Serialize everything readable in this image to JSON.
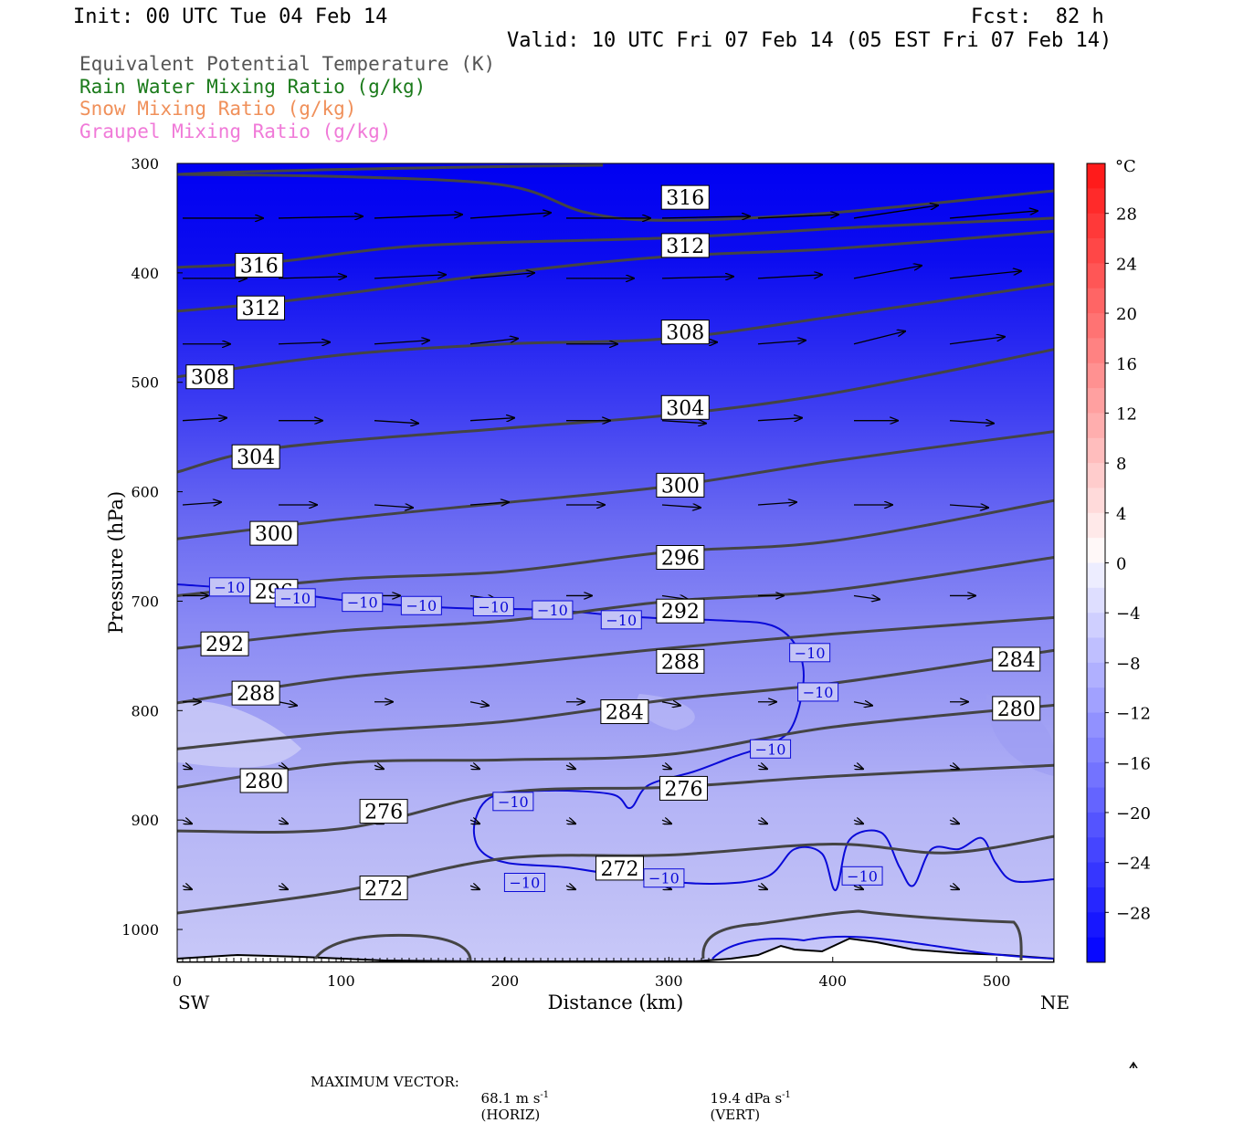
{
  "header": {
    "init": "Init: 00 UTC Tue 04 Feb 14",
    "fcst": "Fcst:  82 h",
    "valid": "Valid: 10 UTC Fri 07 Feb 14 (05 EST Fri 07 Feb 14)"
  },
  "legend": [
    {
      "label": "Equivalent Potential Temperature (K)",
      "color": "#555555"
    },
    {
      "label": "Rain Water Mixing Ratio (g/kg)",
      "color": "#1a7a1a"
    },
    {
      "label": "Snow Mixing Ratio (g/kg)",
      "color": "#f0905a"
    },
    {
      "label": "Graupel Mixing Ratio (g/kg)",
      "color": "#f07ad8"
    }
  ],
  "chart_data": {
    "type": "cross-section",
    "xlabel": "Distance (km)",
    "ylabel": "Pressure (hPa)",
    "xlim": [
      0,
      535
    ],
    "ylim": [
      1030,
      300
    ],
    "y_scale": "linear",
    "x_ticks": [
      0,
      100,
      200,
      300,
      400,
      500
    ],
    "y_ticks": [
      300,
      400,
      500,
      600,
      700,
      800,
      900,
      1000
    ],
    "x_end_labels": {
      "left": "SW",
      "right": "NE"
    },
    "colorbar": {
      "unit": "°C",
      "levels": [
        -32,
        -30,
        -28,
        -26,
        -24,
        -22,
        -20,
        -18,
        -16,
        -14,
        -12,
        -10,
        -8,
        -6,
        -4,
        -2,
        0,
        2,
        4,
        6,
        8,
        10,
        12,
        14,
        16,
        18,
        20,
        22,
        24,
        26,
        28,
        30,
        32
      ],
      "labels": [
        "28",
        "24",
        "20",
        "16",
        "12",
        "8",
        "4",
        "0",
        "-4",
        "-8",
        "-12",
        "-16",
        "-20",
        "-24",
        "-28"
      ]
    },
    "theta_e_contours": [
      {
        "value": 316,
        "points": [
          [
            0,
            310
          ],
          [
            100,
            312
          ],
          [
            200,
            320
          ],
          [
            250,
            345
          ],
          [
            300,
            352
          ],
          [
            400,
            345
          ],
          [
            535,
            325
          ]
        ]
      },
      {
        "value": 316,
        "points": [
          [
            0,
            395
          ],
          [
            60,
            390
          ],
          [
            150,
            375
          ],
          [
            300,
            368
          ],
          [
            420,
            358
          ],
          [
            535,
            350
          ]
        ]
      },
      {
        "value": 312,
        "points": [
          [
            0,
            435
          ],
          [
            70,
            425
          ],
          [
            200,
            400
          ],
          [
            300,
            385
          ],
          [
            400,
            378
          ],
          [
            535,
            362
          ]
        ]
      },
      {
        "value": 308,
        "points": [
          [
            0,
            495
          ],
          [
            100,
            475
          ],
          [
            200,
            465
          ],
          [
            300,
            460
          ],
          [
            400,
            440
          ],
          [
            535,
            410
          ]
        ]
      },
      {
        "value": 304,
        "points": [
          [
            0,
            582
          ],
          [
            60,
            560
          ],
          [
            200,
            542
          ],
          [
            300,
            530
          ],
          [
            400,
            510
          ],
          [
            535,
            470
          ]
        ]
      },
      {
        "value": 300,
        "points": [
          [
            0,
            643
          ],
          [
            100,
            625
          ],
          [
            200,
            610
          ],
          [
            300,
            595
          ],
          [
            400,
            572
          ],
          [
            535,
            545
          ]
        ]
      },
      {
        "value": 296,
        "points": [
          [
            0,
            695
          ],
          [
            100,
            680
          ],
          [
            200,
            673
          ],
          [
            300,
            655
          ],
          [
            400,
            645
          ],
          [
            535,
            608
          ]
        ]
      },
      {
        "value": 292,
        "points": [
          [
            0,
            743
          ],
          [
            100,
            727
          ],
          [
            200,
            718
          ],
          [
            300,
            700
          ],
          [
            400,
            690
          ],
          [
            535,
            660
          ]
        ]
      },
      {
        "value": 288,
        "points": [
          [
            0,
            793
          ],
          [
            100,
            770
          ],
          [
            200,
            758
          ],
          [
            300,
            743
          ],
          [
            400,
            730
          ],
          [
            535,
            715
          ]
        ]
      },
      {
        "value": 284,
        "points": [
          [
            0,
            835
          ],
          [
            100,
            820
          ],
          [
            200,
            810
          ],
          [
            300,
            790
          ],
          [
            400,
            775
          ],
          [
            535,
            745
          ]
        ]
      },
      {
        "value": 280,
        "points": [
          [
            0,
            870
          ],
          [
            100,
            848
          ],
          [
            200,
            845
          ],
          [
            300,
            840
          ],
          [
            400,
            815
          ],
          [
            535,
            795
          ]
        ]
      },
      {
        "value": 276,
        "points": [
          [
            0,
            910
          ],
          [
            100,
            908
          ],
          [
            200,
            875
          ],
          [
            300,
            870
          ],
          [
            400,
            860
          ],
          [
            535,
            850
          ]
        ]
      },
      {
        "value": 272,
        "points": [
          [
            0,
            985
          ],
          [
            100,
            965
          ],
          [
            200,
            935
          ],
          [
            300,
            932
          ],
          [
            400,
            922
          ],
          [
            470,
            930
          ],
          [
            535,
            915
          ]
        ]
      }
    ],
    "theta_e_labels": [
      {
        "value": "316",
        "x": 50,
        "p": 393
      },
      {
        "value": "316",
        "x": 310,
        "p": 331
      },
      {
        "value": "312",
        "x": 51,
        "p": 432
      },
      {
        "value": "312",
        "x": 310,
        "p": 375
      },
      {
        "value": "308",
        "x": 20,
        "p": 495
      },
      {
        "value": "308",
        "x": 310,
        "p": 454
      },
      {
        "value": "304",
        "x": 48,
        "p": 568
      },
      {
        "value": "304",
        "x": 310,
        "p": 523
      },
      {
        "value": "300",
        "x": 59,
        "p": 638
      },
      {
        "value": "300",
        "x": 307,
        "p": 594
      },
      {
        "value": "296",
        "x": 59,
        "p": 691
      },
      {
        "value": "296",
        "x": 307,
        "p": 660
      },
      {
        "value": "292",
        "x": 29,
        "p": 739
      },
      {
        "value": "292",
        "x": 307,
        "p": 709
      },
      {
        "value": "288",
        "x": 48,
        "p": 784
      },
      {
        "value": "288",
        "x": 307,
        "p": 755
      },
      {
        "value": "284",
        "x": 273,
        "p": 801
      },
      {
        "value": "284",
        "x": 512,
        "p": 753
      },
      {
        "value": "280",
        "x": 53,
        "p": 864
      },
      {
        "value": "280",
        "x": 512,
        "p": 798
      },
      {
        "value": "276",
        "x": 126,
        "p": 892
      },
      {
        "value": "276",
        "x": 309,
        "p": 871
      },
      {
        "value": "272",
        "x": 126,
        "p": 962
      },
      {
        "value": "272",
        "x": 270,
        "p": 944
      }
    ],
    "temp_minus10_labels": [
      {
        "value": "-10",
        "x": 32,
        "p": 687
      },
      {
        "value": "-10",
        "x": 72,
        "p": 697
      },
      {
        "value": "-10",
        "x": 113,
        "p": 701
      },
      {
        "value": "-10",
        "x": 149,
        "p": 704
      },
      {
        "value": "-10",
        "x": 193,
        "p": 705
      },
      {
        "value": "-10",
        "x": 229,
        "p": 708
      },
      {
        "value": "-10",
        "x": 271,
        "p": 717
      },
      {
        "value": "-10",
        "x": 386,
        "p": 747
      },
      {
        "value": "-10",
        "x": 391,
        "p": 783
      },
      {
        "value": "-10",
        "x": 362,
        "p": 835
      },
      {
        "value": "-10",
        "x": 205,
        "p": 883
      },
      {
        "value": "-10",
        "x": 212,
        "p": 957
      },
      {
        "value": "-10",
        "x": 297,
        "p": 953
      },
      {
        "value": "-10",
        "x": 418,
        "p": 951
      }
    ],
    "wind_arrow_rows": [
      350,
      405,
      465,
      535,
      612,
      695,
      792,
      850,
      900,
      960
    ],
    "footer": {
      "max_vector_label": "MAXIMUM VECTOR:",
      "horiz_value": "68.1 m s",
      "horiz_exp": "-1",
      "horiz_tag": "(HORIZ)",
      "vert_value": "19.4 dPa s",
      "vert_exp": "-1",
      "vert_tag": "(VERT)"
    }
  }
}
